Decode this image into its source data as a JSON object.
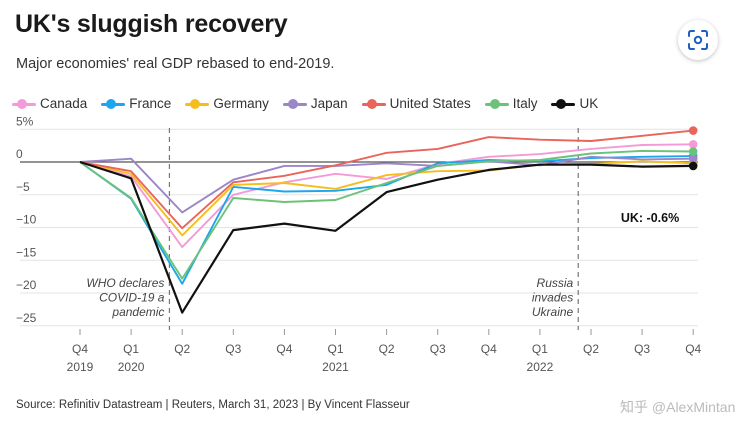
{
  "header": {
    "title": "UK's sluggish recovery",
    "subtitle": "Major economies' real GDP rebased to end-2019."
  },
  "footer": {
    "source": "Source: Refinitiv Datastream | Reuters, March 31, 2023 | By Vincent Flasseur",
    "watermark": "知乎 @AlexMintan"
  },
  "lens_button": {
    "icon": "lens-scan-icon"
  },
  "chart_data": {
    "type": "line",
    "title": "UK's sluggish recovery",
    "subtitle": "Major economies' real GDP rebased to end-2019.",
    "x": [
      "Q4 2019",
      "Q1 2020",
      "Q2 2020",
      "Q3 2020",
      "Q4 2020",
      "Q1 2021",
      "Q2 2021",
      "Q3 2021",
      "Q4 2021",
      "Q1 2022",
      "Q2 2022",
      "Q3 2022",
      "Q4 2022"
    ],
    "x_tick_labels": [
      {
        "quarter": "Q4",
        "year": "2019"
      },
      {
        "quarter": "Q1",
        "year": "2020"
      },
      {
        "quarter": "Q2",
        "year": ""
      },
      {
        "quarter": "Q3",
        "year": ""
      },
      {
        "quarter": "Q4",
        "year": ""
      },
      {
        "quarter": "Q1",
        "year": "2021"
      },
      {
        "quarter": "Q2",
        "year": ""
      },
      {
        "quarter": "Q3",
        "year": ""
      },
      {
        "quarter": "Q4",
        "year": ""
      },
      {
        "quarter": "Q1",
        "year": "2022"
      },
      {
        "quarter": "Q2",
        "year": ""
      },
      {
        "quarter": "Q3",
        "year": ""
      },
      {
        "quarter": "Q4",
        "year": ""
      }
    ],
    "y_ticks": [
      5,
      0,
      -5,
      -10,
      -15,
      -20,
      -25
    ],
    "y_tick_labels": [
      "5%",
      "0",
      "−5",
      "−10",
      "−15",
      "−20",
      "−25"
    ],
    "ylim": [
      -26,
      6
    ],
    "xlabel": "",
    "ylabel": "",
    "grid": true,
    "legend": "top-left",
    "series": [
      {
        "name": "Canada",
        "color": "#f49ad8",
        "values": [
          0,
          -2.2,
          -13.0,
          -5.0,
          -3.1,
          -1.8,
          -2.6,
          -0.3,
          0.8,
          1.2,
          2.0,
          2.6,
          2.7
        ]
      },
      {
        "name": "France",
        "color": "#1ca7ec",
        "values": [
          0,
          -5.6,
          -18.6,
          -3.8,
          -4.5,
          -4.4,
          -3.5,
          -0.2,
          0.3,
          0.1,
          0.6,
          0.8,
          0.9
        ]
      },
      {
        "name": "Germany",
        "color": "#f5be1e",
        "values": [
          0,
          -1.8,
          -11.2,
          -3.5,
          -3.2,
          -4.1,
          -2.0,
          -1.4,
          -1.3,
          -0.4,
          -0.3,
          0.1,
          -0.2
        ]
      },
      {
        "name": "Japan",
        "color": "#9a86c8",
        "values": [
          0,
          0.5,
          -7.7,
          -2.7,
          -0.6,
          -0.6,
          -0.2,
          -0.6,
          0.1,
          -0.5,
          0.8,
          0.4,
          0.5
        ]
      },
      {
        "name": "United States",
        "color": "#e9645a",
        "values": [
          0,
          -1.4,
          -10.1,
          -3.1,
          -2.1,
          -0.5,
          1.4,
          2.0,
          3.8,
          3.4,
          3.2,
          4.0,
          4.8
        ]
      },
      {
        "name": "Italy",
        "color": "#6cc278",
        "values": [
          0,
          -5.5,
          -17.8,
          -5.5,
          -6.1,
          -5.8,
          -3.2,
          -0.6,
          0.1,
          0.3,
          1.3,
          1.7,
          1.6
        ]
      },
      {
        "name": "UK",
        "color": "#111111",
        "values": [
          0,
          -2.5,
          -23.0,
          -10.4,
          -9.4,
          -10.5,
          -4.6,
          -2.7,
          -1.2,
          -0.4,
          -0.4,
          -0.7,
          -0.6
        ]
      }
    ],
    "annotations": [
      {
        "after_index": 1,
        "lines": [
          "WHO declares",
          "COVID-19 a",
          "pandemic"
        ]
      },
      {
        "after_index": 9,
        "lines": [
          "Russia",
          "invades",
          "Ukraine"
        ]
      }
    ],
    "end_label": {
      "series": "UK",
      "text": "UK: -0.6%"
    }
  }
}
